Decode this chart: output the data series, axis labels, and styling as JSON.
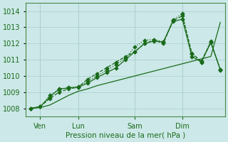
{
  "bg_color": "#cce8e8",
  "grid_color": "#aacccc",
  "line_color": "#1a6b1a",
  "ylabel": "Pression niveau de la mer( hPa )",
  "ylim": [
    1007.5,
    1014.5
  ],
  "yticks": [
    1008,
    1009,
    1010,
    1011,
    1012,
    1013,
    1014
  ],
  "xlim": [
    -0.5,
    20.5
  ],
  "xtick_positions": [
    1,
    5,
    11,
    16
  ],
  "xtick_labels": [
    "Ven",
    "Lun",
    "Sam",
    "Dim"
  ],
  "x_vlines": [
    1,
    5,
    11,
    16
  ],
  "series_smooth_x": [
    0,
    1,
    2,
    3,
    4,
    5,
    6,
    7,
    8,
    9,
    10,
    11,
    12,
    13,
    14,
    15,
    16,
    17,
    18,
    19,
    20
  ],
  "series_smooth": [
    1008.0,
    1008.05,
    1008.2,
    1008.5,
    1008.8,
    1009.05,
    1009.2,
    1009.4,
    1009.55,
    1009.7,
    1009.85,
    1010.0,
    1010.15,
    1010.3,
    1010.45,
    1010.6,
    1010.75,
    1010.9,
    1011.05,
    1011.2,
    1013.3
  ],
  "series1_x": [
    0,
    1,
    2,
    3,
    4,
    5,
    6,
    7,
    8,
    9,
    10,
    11,
    12,
    13,
    14,
    15,
    16,
    17,
    18,
    19,
    20
  ],
  "series1": [
    1008.0,
    1008.1,
    1008.7,
    1009.2,
    1009.25,
    1009.3,
    1009.55,
    1009.9,
    1010.2,
    1010.5,
    1011.0,
    1011.5,
    1012.0,
    1012.15,
    1012.1,
    1013.35,
    1013.5,
    1011.2,
    1010.85,
    1012.05,
    1010.4
  ],
  "series2_x": [
    0,
    1,
    2,
    3,
    4,
    5,
    6,
    7,
    8,
    9,
    10,
    11,
    12,
    13,
    14,
    15,
    16,
    17,
    18,
    19,
    20
  ],
  "series2": [
    1008.0,
    1008.1,
    1008.6,
    1009.0,
    1009.2,
    1009.3,
    1009.8,
    1010.15,
    1010.5,
    1010.85,
    1011.2,
    1011.5,
    1012.0,
    1012.2,
    1012.0,
    1013.4,
    1013.7,
    1011.4,
    1010.9,
    1012.1,
    1010.4
  ],
  "series3_x": [
    0,
    1,
    2,
    3,
    4,
    5,
    6,
    7,
    8,
    9,
    10,
    11,
    12,
    13,
    14,
    15,
    16,
    17,
    18,
    19,
    20
  ],
  "series3": [
    1008.0,
    1008.1,
    1008.8,
    1009.15,
    1009.3,
    1009.35,
    1009.65,
    1010.0,
    1010.35,
    1010.7,
    1011.1,
    1011.8,
    1012.2,
    1012.25,
    1012.1,
    1013.45,
    1013.85,
    1011.35,
    1010.85,
    1012.15,
    1010.35
  ]
}
